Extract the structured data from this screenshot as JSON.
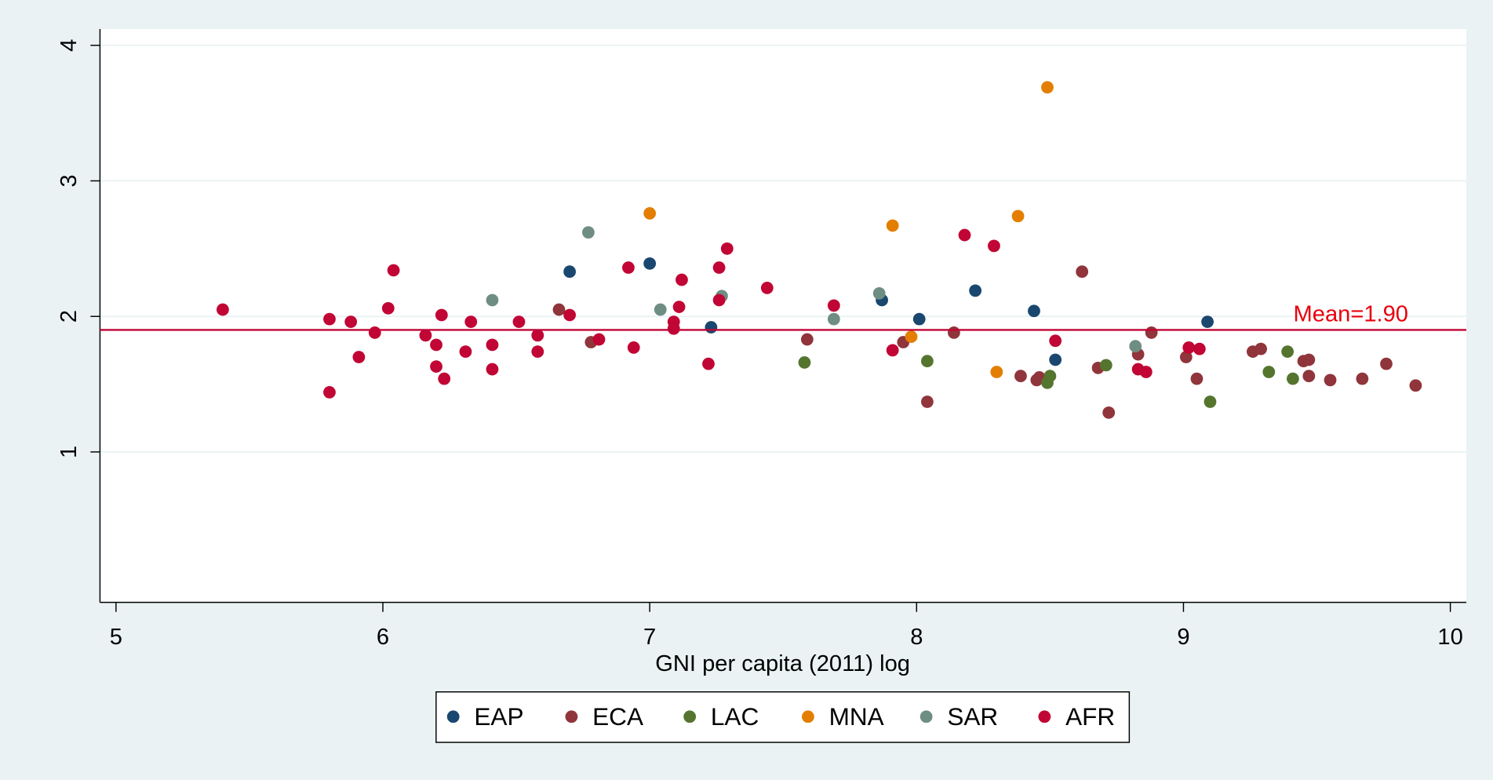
{
  "chart_data": {
    "type": "scatter",
    "x_label": "GNI per capita (2011) log",
    "xlim": [
      4.94,
      10.06
    ],
    "xticks": [
      5,
      6,
      7,
      8,
      9,
      10
    ],
    "ylim": [
      -0.11,
      4.12
    ],
    "yticks": [
      1,
      2,
      3,
      4
    ],
    "grid": true,
    "legend": "bottom",
    "mean_line": {
      "value": 1.9,
      "label": "Mean=1.90",
      "color": "#c10534",
      "label_color": "#e8000b"
    },
    "series": [
      {
        "name": "EAP",
        "color": "#1a476f",
        "x": [
          6.7,
          7.0,
          7.23,
          7.87,
          8.01,
          8.22,
          8.44,
          8.52,
          9.09
        ],
        "values": [
          2.33,
          2.39,
          1.92,
          2.12,
          1.98,
          2.19,
          2.04,
          1.68,
          1.96
        ]
      },
      {
        "name": "ECA",
        "color": "#90353b",
        "x": [
          6.66,
          6.78,
          7.59,
          7.95,
          8.04,
          8.14,
          8.39,
          8.45,
          8.46,
          8.62,
          8.68,
          8.72,
          8.83,
          8.88,
          9.01,
          9.05,
          9.26,
          9.29,
          9.45,
          9.47,
          9.47,
          9.55,
          9.67,
          9.76,
          9.87
        ],
        "values": [
          2.05,
          1.81,
          1.83,
          1.81,
          1.37,
          1.88,
          1.56,
          1.53,
          1.55,
          2.33,
          1.62,
          1.29,
          1.72,
          1.88,
          1.7,
          1.54,
          1.74,
          1.76,
          1.67,
          1.68,
          1.56,
          1.53,
          1.54,
          1.65,
          1.49
        ]
      },
      {
        "name": "LAC",
        "color": "#55752f",
        "x": [
          7.58,
          8.04,
          8.49,
          8.5,
          8.71,
          9.1,
          9.32,
          9.39,
          9.41
        ],
        "values": [
          1.66,
          1.67,
          1.51,
          1.56,
          1.64,
          1.37,
          1.59,
          1.74,
          1.54
        ]
      },
      {
        "name": "MNA",
        "color": "#e37e00",
        "x": [
          7.0,
          7.91,
          7.98,
          8.3,
          8.38,
          8.49
        ],
        "values": [
          2.76,
          2.67,
          1.85,
          1.59,
          2.74,
          3.69
        ]
      },
      {
        "name": "SAR",
        "color": "#6e8e84",
        "x": [
          6.41,
          6.77,
          7.04,
          7.27,
          7.69,
          7.86,
          8.82
        ],
        "values": [
          2.12,
          2.62,
          2.05,
          2.15,
          1.98,
          2.17,
          1.78
        ]
      },
      {
        "name": "AFR",
        "color": "#c10534",
        "x": [
          5.4,
          5.8,
          5.8,
          5.88,
          5.91,
          5.97,
          6.02,
          6.04,
          6.16,
          6.2,
          6.2,
          6.22,
          6.23,
          6.31,
          6.33,
          6.41,
          6.41,
          6.51,
          6.58,
          6.58,
          6.7,
          6.81,
          6.92,
          6.94,
          7.09,
          7.09,
          7.11,
          7.12,
          7.22,
          7.26,
          7.26,
          7.29,
          7.44,
          7.69,
          7.91,
          8.18,
          8.29,
          8.52,
          8.83,
          8.86,
          9.02,
          9.06
        ],
        "values": [
          2.05,
          1.98,
          1.44,
          1.96,
          1.7,
          1.88,
          2.06,
          2.34,
          1.86,
          1.79,
          1.63,
          2.01,
          1.54,
          1.74,
          1.96,
          1.79,
          1.61,
          1.96,
          1.86,
          1.74,
          2.01,
          1.83,
          2.36,
          1.77,
          1.96,
          1.91,
          2.07,
          2.27,
          1.65,
          2.36,
          2.12,
          2.5,
          2.21,
          2.08,
          1.75,
          2.6,
          2.52,
          1.82,
          1.61,
          1.59,
          1.77,
          1.76
        ]
      }
    ]
  }
}
